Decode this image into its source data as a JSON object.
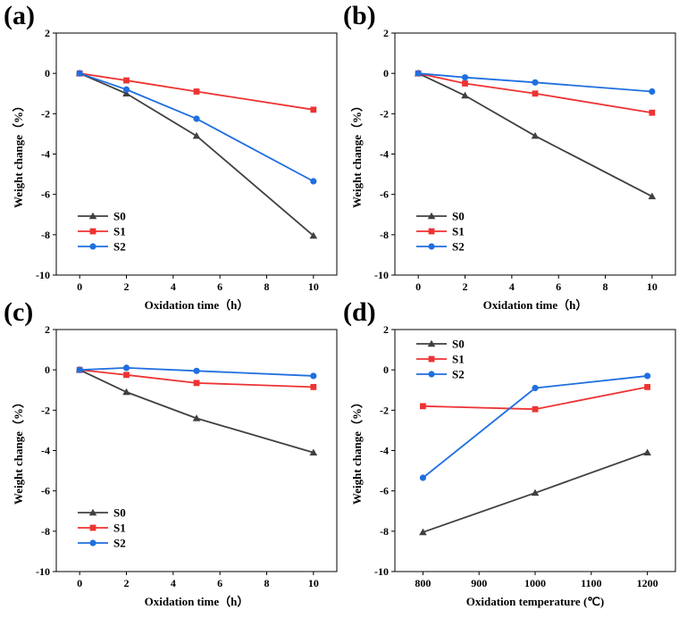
{
  "chart_data": [
    {
      "type": "line",
      "panel_label": "(a)",
      "xlabel": "Oxidation time（h）",
      "ylabel": "Weight change（%）",
      "xlim": [
        -1,
        11
      ],
      "ylim": [
        -10,
        2
      ],
      "xticks": [
        0,
        2,
        4,
        6,
        8,
        10
      ],
      "xtick_labels": [
        "0",
        "2",
        "4",
        "6",
        "8",
        "10"
      ],
      "yticks": [
        2,
        0,
        -2,
        -4,
        -6,
        -8,
        -10
      ],
      "ytick_labels": [
        "2",
        "0",
        "-2",
        "-4",
        "-6",
        "-8",
        "-10"
      ],
      "legend_position": "bottom-left",
      "x": [
        0,
        2,
        5,
        10
      ],
      "series": [
        {
          "name": "S0",
          "values": [
            0,
            -1.0,
            -3.1,
            -8.05
          ],
          "color": "#404040",
          "marker": "triangle"
        },
        {
          "name": "S1",
          "values": [
            0,
            -0.35,
            -0.9,
            -1.8
          ],
          "color": "#ee3333",
          "marker": "square"
        },
        {
          "name": "S2",
          "values": [
            0,
            -0.8,
            -2.25,
            -5.35
          ],
          "color": "#1f6fe0",
          "marker": "circle"
        }
      ]
    },
    {
      "type": "line",
      "panel_label": "(b)",
      "xlabel": "Oxidation time（h）",
      "ylabel": "Weight change（%）",
      "xlim": [
        -1,
        11
      ],
      "ylim": [
        -10,
        2
      ],
      "xticks": [
        0,
        2,
        4,
        6,
        8,
        10
      ],
      "xtick_labels": [
        "0",
        "2",
        "4",
        "6",
        "8",
        "10"
      ],
      "yticks": [
        2,
        0,
        -2,
        -4,
        -6,
        -8,
        -10
      ],
      "ytick_labels": [
        "2",
        "0",
        "-2",
        "-4",
        "-6",
        "-8",
        "-10"
      ],
      "legend_position": "bottom-left",
      "x": [
        0,
        2,
        5,
        10
      ],
      "series": [
        {
          "name": "S0",
          "values": [
            0,
            -1.1,
            -3.1,
            -6.1
          ],
          "color": "#404040",
          "marker": "triangle"
        },
        {
          "name": "S1",
          "values": [
            0,
            -0.5,
            -1.0,
            -1.95
          ],
          "color": "#ee3333",
          "marker": "square"
        },
        {
          "name": "S2",
          "values": [
            0,
            -0.2,
            -0.45,
            -0.9
          ],
          "color": "#1f6fe0",
          "marker": "circle"
        }
      ]
    },
    {
      "type": "line",
      "panel_label": "(c)",
      "xlabel": "Oxidation time（h）",
      "ylabel": "Weight change（%）",
      "xlim": [
        -1,
        11
      ],
      "ylim": [
        -10,
        2
      ],
      "xticks": [
        0,
        2,
        4,
        6,
        8,
        10
      ],
      "xtick_labels": [
        "0",
        "2",
        "4",
        "6",
        "8",
        "10"
      ],
      "yticks": [
        2,
        0,
        -2,
        -4,
        -6,
        -8,
        -10
      ],
      "ytick_labels": [
        "2",
        "0",
        "-2",
        "-4",
        "-6",
        "-8",
        "-10"
      ],
      "legend_position": "bottom-left",
      "x": [
        0,
        2,
        5,
        10
      ],
      "series": [
        {
          "name": "S0",
          "values": [
            0,
            -1.1,
            -2.4,
            -4.1
          ],
          "color": "#404040",
          "marker": "triangle"
        },
        {
          "name": "S1",
          "values": [
            0,
            -0.25,
            -0.65,
            -0.85
          ],
          "color": "#ee3333",
          "marker": "square"
        },
        {
          "name": "S2",
          "values": [
            0,
            0.1,
            -0.05,
            -0.3
          ],
          "color": "#1f6fe0",
          "marker": "circle"
        }
      ]
    },
    {
      "type": "line",
      "panel_label": "(d)",
      "xlabel": "Oxidation temperature (℃)",
      "ylabel": "Weight change（%）",
      "xlim": [
        750,
        1250
      ],
      "ylim": [
        -10,
        2
      ],
      "xticks": [
        800,
        900,
        1000,
        1100,
        1200
      ],
      "xtick_labels": [
        "800",
        "900",
        "1000",
        "1100",
        "1200"
      ],
      "yticks": [
        2,
        0,
        -2,
        -4,
        -6,
        -8,
        -10
      ],
      "ytick_labels": [
        "2",
        "0",
        "-2",
        "-4",
        "-6",
        "-8",
        "-10"
      ],
      "legend_position": "top-left",
      "x": [
        800,
        1000,
        1200
      ],
      "series": [
        {
          "name": "S0",
          "values": [
            -8.05,
            -6.1,
            -4.1
          ],
          "color": "#404040",
          "marker": "triangle"
        },
        {
          "name": "S1",
          "values": [
            -1.8,
            -1.95,
            -0.85
          ],
          "color": "#ee3333",
          "marker": "square"
        },
        {
          "name": "S2",
          "values": [
            -5.35,
            -0.9,
            -0.3
          ],
          "color": "#1f6fe0",
          "marker": "circle"
        }
      ]
    }
  ]
}
